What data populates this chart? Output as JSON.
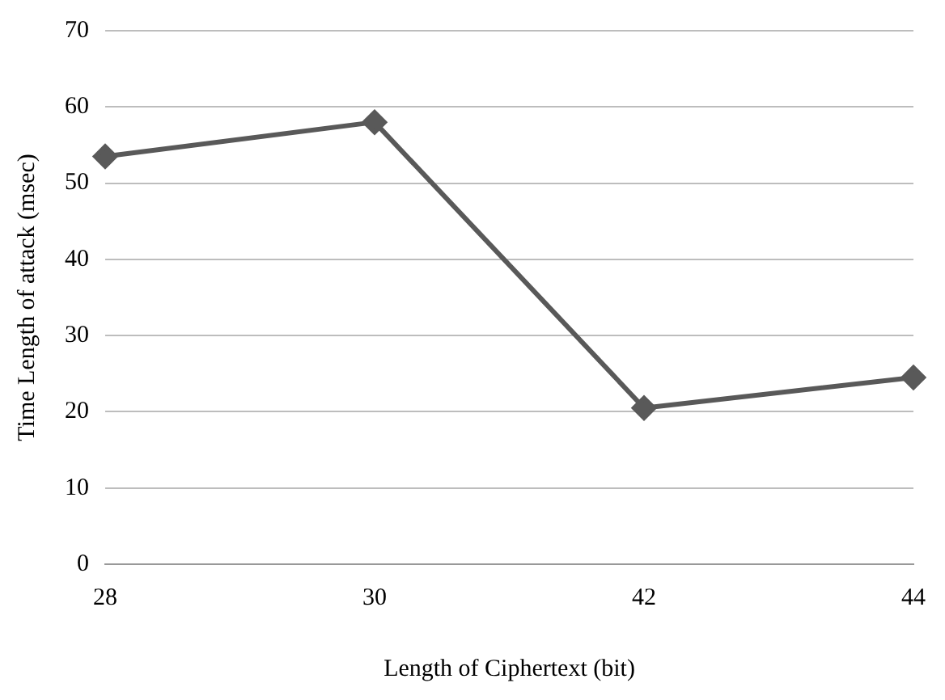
{
  "chart_data": {
    "type": "line",
    "xlabel": "Length of Ciphertext (bit)",
    "ylabel": "Time Length of attack (msec)",
    "categories": [
      "28",
      "30",
      "42",
      "44"
    ],
    "series": [
      {
        "color": "#595959",
        "values": [
          53.5,
          58,
          20.5,
          24.5
        ]
      }
    ],
    "ylim": [
      0,
      70
    ],
    "yticks": [
      0,
      10,
      20,
      30,
      40,
      50,
      60,
      70
    ],
    "grid": "y",
    "legend": false,
    "marker": "diamond",
    "line_style": "solid"
  }
}
